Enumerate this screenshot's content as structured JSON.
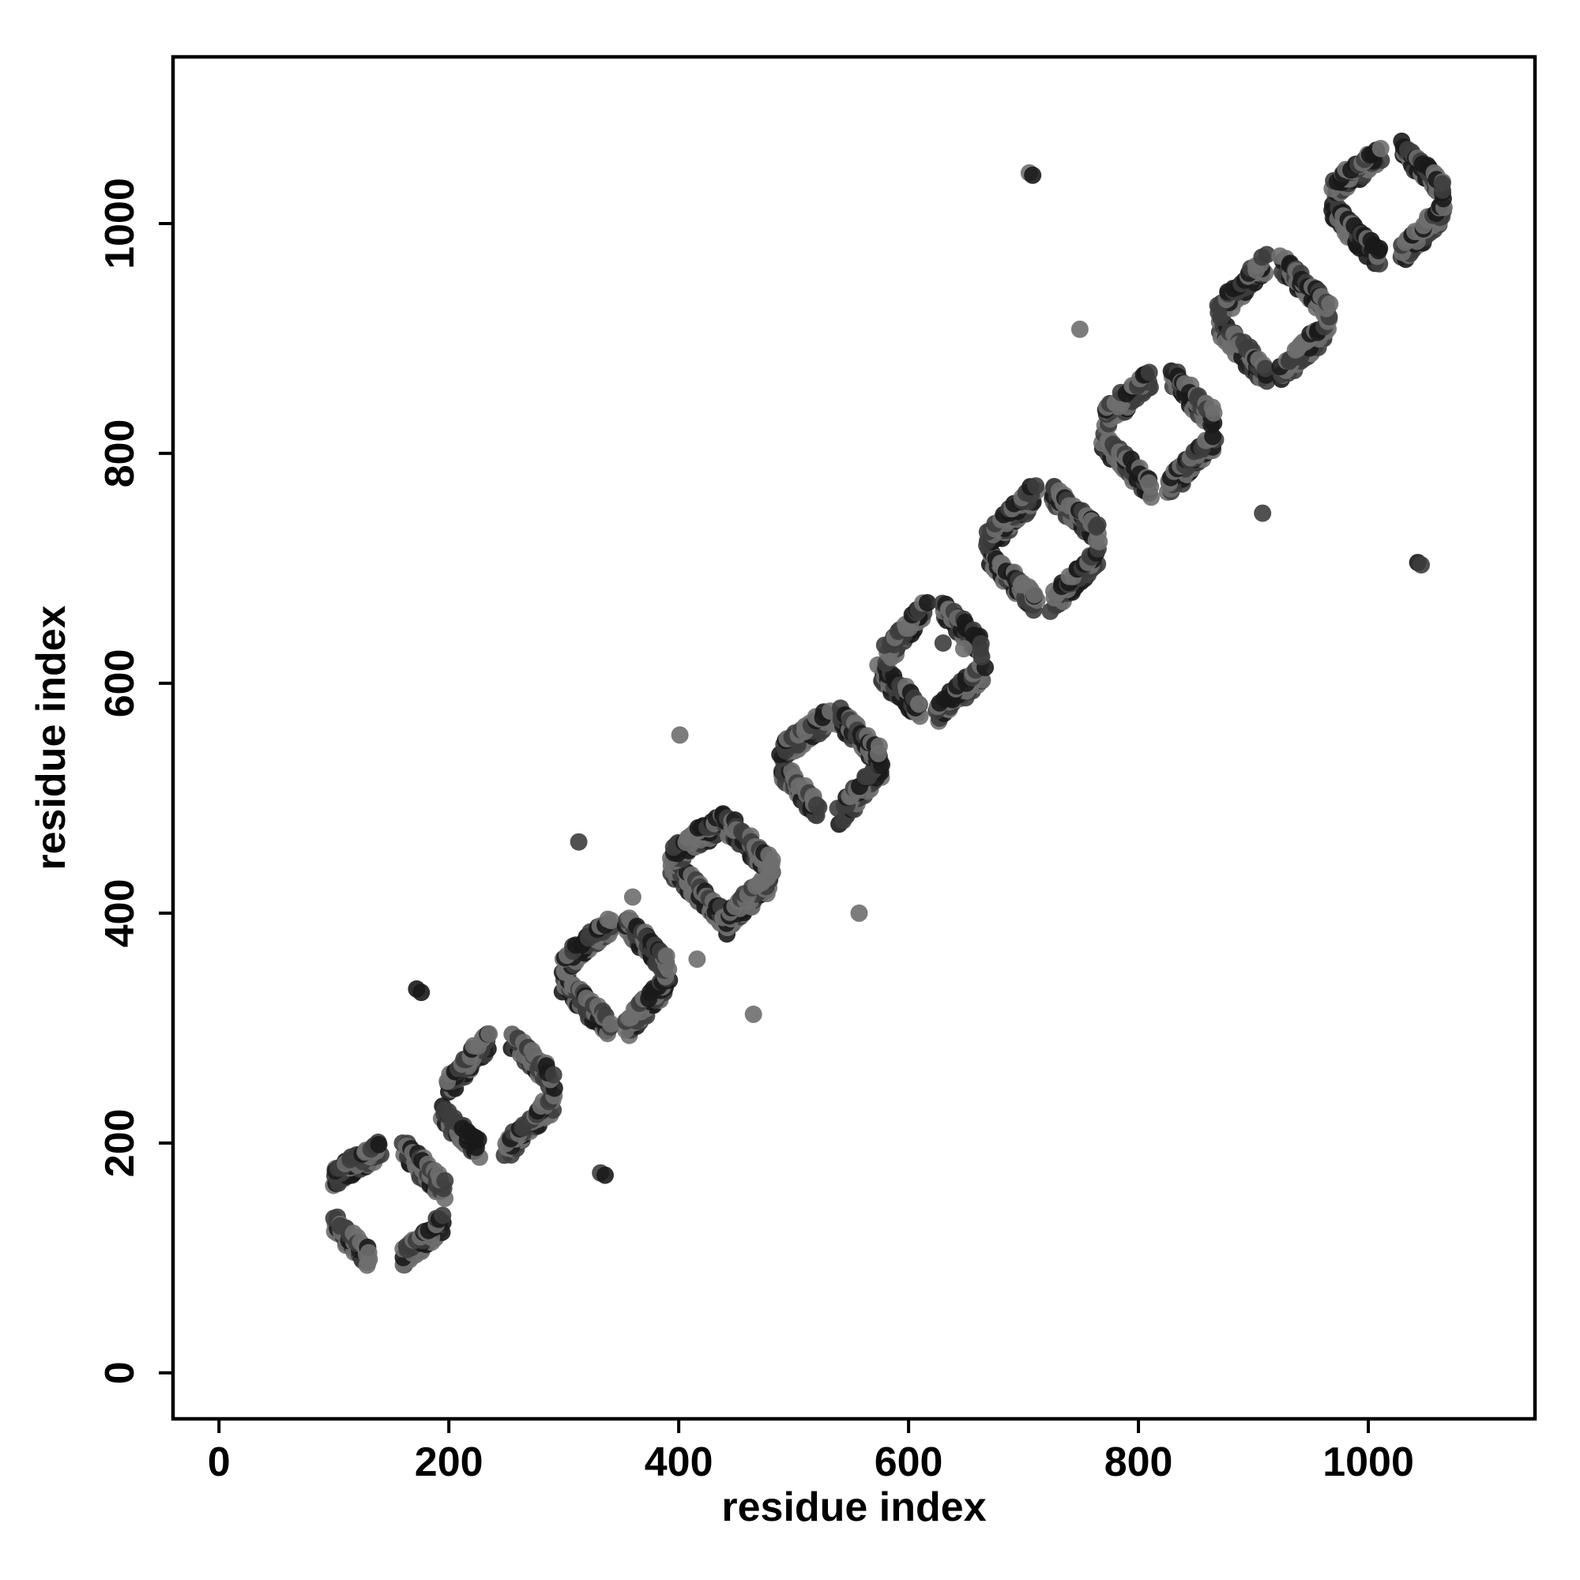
{
  "chart_data": {
    "type": "scatter",
    "xlabel": "residue index",
    "ylabel": "residue index",
    "xlim": [
      -40,
      1145
    ],
    "ylim": [
      -40,
      1145
    ],
    "x_ticks": [
      "0",
      "200",
      "400",
      "600",
      "800",
      "1000"
    ],
    "y_ticks": [
      "0",
      "200",
      "400",
      "600",
      "800",
      "1000"
    ],
    "x_tick_values": [
      0,
      200,
      400,
      600,
      800,
      1000
    ],
    "y_tick_values": [
      0,
      200,
      400,
      600,
      800,
      1000
    ],
    "grid": false,
    "legend": "none",
    "colors": {
      "point_dark": "#1a1a1a",
      "point_mid": "#3d3d3d",
      "point_light": "#6e6e6e",
      "frame": "#000000"
    },
    "blocks": [
      {
        "x": [
          100,
          130
        ],
        "y": [
          100,
          130
        ],
        "orientation": "anti"
      },
      {
        "x": [
          100,
          140
        ],
        "y": [
          170,
          195
        ],
        "orientation": "para"
      },
      {
        "x": [
          160,
          195
        ],
        "y": [
          100,
          130
        ],
        "orientation": "para"
      },
      {
        "x": [
          160,
          195
        ],
        "y": [
          160,
          195
        ],
        "orientation": "anti"
      },
      {
        "x": [
          195,
          225
        ],
        "y": [
          195,
          225
        ],
        "orientation": "anti"
      },
      {
        "x": [
          200,
          235
        ],
        "y": [
          250,
          290
        ],
        "orientation": "para"
      },
      {
        "x": [
          250,
          290
        ],
        "y": [
          195,
          235
        ],
        "orientation": "para"
      },
      {
        "x": [
          255,
          290
        ],
        "y": [
          255,
          290
        ],
        "orientation": "anti"
      },
      {
        "x": [
          300,
          340
        ],
        "y": [
          300,
          340
        ],
        "orientation": "anti"
      },
      {
        "x": [
          300,
          340
        ],
        "y": [
          355,
          390
        ],
        "orientation": "para"
      },
      {
        "x": [
          355,
          390
        ],
        "y": [
          300,
          340
        ],
        "orientation": "para"
      },
      {
        "x": [
          355,
          390
        ],
        "y": [
          355,
          390
        ],
        "orientation": "anti"
      },
      {
        "x": [
          395,
          440
        ],
        "y": [
          395,
          440
        ],
        "orientation": "anti"
      },
      {
        "x": [
          395,
          440
        ],
        "y": [
          450,
          480
        ],
        "orientation": "para"
      },
      {
        "x": [
          440,
          480
        ],
        "y": [
          390,
          430
        ],
        "orientation": "para"
      },
      {
        "x": [
          440,
          480
        ],
        "y": [
          440,
          480
        ],
        "orientation": "anti"
      },
      {
        "x": [
          490,
          520
        ],
        "y": [
          490,
          525
        ],
        "orientation": "anti"
      },
      {
        "x": [
          490,
          530
        ],
        "y": [
          540,
          570
        ],
        "orientation": "para"
      },
      {
        "x": [
          540,
          575
        ],
        "y": [
          485,
          525
        ],
        "orientation": "para"
      },
      {
        "x": [
          540,
          575
        ],
        "y": [
          535,
          570
        ],
        "orientation": "anti"
      },
      {
        "x": [
          575,
          610
        ],
        "y": [
          575,
          610
        ],
        "orientation": "anti"
      },
      {
        "x": [
          580,
          615
        ],
        "y": [
          625,
          665
        ],
        "orientation": "para"
      },
      {
        "x": [
          625,
          665
        ],
        "y": [
          575,
          610
        ],
        "orientation": "para"
      },
      {
        "x": [
          630,
          665
        ],
        "y": [
          630,
          665
        ],
        "orientation": "anti"
      },
      {
        "x": [
          670,
          710
        ],
        "y": [
          670,
          710
        ],
        "orientation": "anti"
      },
      {
        "x": [
          670,
          710
        ],
        "y": [
          725,
          765
        ],
        "orientation": "para"
      },
      {
        "x": [
          725,
          765
        ],
        "y": [
          670,
          710
        ],
        "orientation": "para"
      },
      {
        "x": [
          725,
          765
        ],
        "y": [
          730,
          765
        ],
        "orientation": "anti"
      },
      {
        "x": [
          770,
          810
        ],
        "y": [
          770,
          810
        ],
        "orientation": "anti"
      },
      {
        "x": [
          770,
          810
        ],
        "y": [
          830,
          865
        ],
        "orientation": "para"
      },
      {
        "x": [
          825,
          865
        ],
        "y": [
          770,
          810
        ],
        "orientation": "para"
      },
      {
        "x": [
          830,
          865
        ],
        "y": [
          830,
          865
        ],
        "orientation": "anti"
      },
      {
        "x": [
          870,
          910
        ],
        "y": [
          870,
          910
        ],
        "orientation": "anti"
      },
      {
        "x": [
          870,
          910
        ],
        "y": [
          925,
          965
        ],
        "orientation": "para"
      },
      {
        "x": [
          925,
          965
        ],
        "y": [
          870,
          910
        ],
        "orientation": "para"
      },
      {
        "x": [
          925,
          965
        ],
        "y": [
          925,
          965
        ],
        "orientation": "anti"
      },
      {
        "x": [
          970,
          1010
        ],
        "y": [
          970,
          1010
        ],
        "orientation": "anti"
      },
      {
        "x": [
          970,
          1010
        ],
        "y": [
          1030,
          1060
        ],
        "orientation": "para"
      },
      {
        "x": [
          1030,
          1065
        ],
        "y": [
          975,
          1010
        ],
        "orientation": "para"
      },
      {
        "x": [
          1030,
          1065
        ],
        "y": [
          1030,
          1065
        ],
        "orientation": "anti"
      }
    ],
    "outliers": [
      [
        172,
        334
      ],
      [
        176,
        331
      ],
      [
        332,
        174
      ],
      [
        336,
        172
      ],
      [
        313,
        462
      ],
      [
        360,
        414
      ],
      [
        401,
        555
      ],
      [
        416,
        360
      ],
      [
        465,
        312
      ],
      [
        557,
        400
      ],
      [
        705,
        1044
      ],
      [
        708,
        1042
      ],
      [
        749,
        908
      ],
      [
        908,
        748
      ],
      [
        1043,
        705
      ],
      [
        1046,
        703
      ],
      [
        630,
        635
      ],
      [
        648,
        630
      ]
    ]
  }
}
